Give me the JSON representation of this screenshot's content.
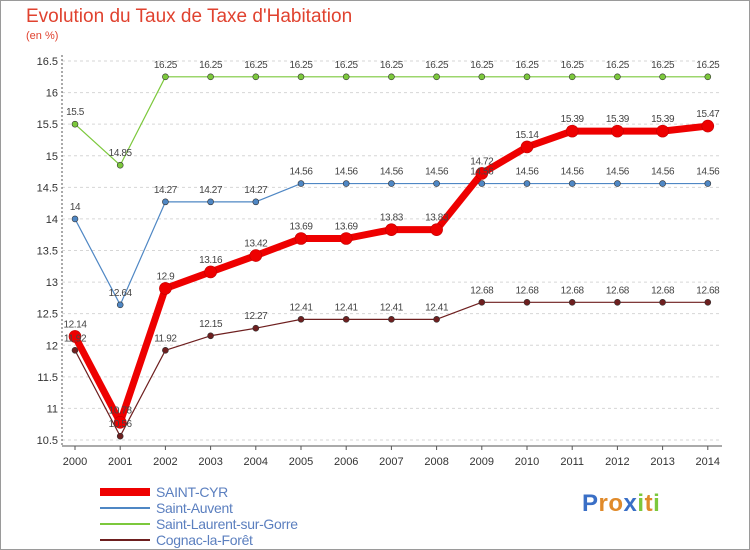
{
  "chart_data": {
    "type": "line",
    "title": "Evolution du Taux de Taxe d'Habitation",
    "subtitle": "(en %)",
    "categories": [
      "2000",
      "2001",
      "2002",
      "2003",
      "2004",
      "2005",
      "2006",
      "2007",
      "2008",
      "2009",
      "2010",
      "2011",
      "2012",
      "2013",
      "2014"
    ],
    "ylim": [
      10.5,
      16.5
    ],
    "yticks": [
      "10.5",
      "11",
      "11.5",
      "12",
      "12.5",
      "13",
      "13.5",
      "14",
      "14.5",
      "15",
      "15.5",
      "16",
      "16.5"
    ],
    "grid": "dashed horizontal",
    "legend_position": "bottom-left",
    "series": [
      {
        "name": "SAINT-CYR",
        "color": "#ee0000",
        "bold": true,
        "values": [
          12.14,
          10.78,
          12.9,
          13.16,
          13.42,
          13.69,
          13.69,
          13.83,
          13.83,
          14.72,
          15.14,
          15.39,
          15.39,
          15.39,
          15.47
        ],
        "labels": [
          "12.14",
          "10.78",
          "12.9",
          "13.16",
          "13.42",
          "13.69",
          "13.69",
          "13.83",
          "13.83",
          "14.72",
          "15.14",
          "15.39",
          "15.39",
          "15.39",
          "15.47"
        ]
      },
      {
        "name": "Saint-Auvent",
        "color": "#4f87c4",
        "bold": false,
        "values": [
          14,
          12.64,
          14.27,
          14.27,
          14.27,
          14.56,
          14.56,
          14.56,
          14.56,
          14.56,
          14.56,
          14.56,
          14.56,
          14.56,
          14.56
        ],
        "labels": [
          "14",
          "12.64",
          "14.27",
          "14.27",
          "14.27",
          "14.56",
          "14.56",
          "14.56",
          "14.56",
          "14.56",
          "14.56",
          "14.56",
          "14.56",
          "14.56",
          "14.56"
        ]
      },
      {
        "name": "Saint-Laurent-sur-Gorre",
        "color": "#7cc83c",
        "bold": false,
        "values": [
          15.5,
          14.85,
          16.25,
          16.25,
          16.25,
          16.25,
          16.25,
          16.25,
          16.25,
          16.25,
          16.25,
          16.25,
          16.25,
          16.25,
          16.25
        ],
        "labels": [
          "15.5",
          "14.85",
          "16.25",
          "16.25",
          "16.25",
          "16.25",
          "16.25",
          "16.25",
          "16.25",
          "16.25",
          "16.25",
          "16.25",
          "16.25",
          "16.25",
          "16.25"
        ]
      },
      {
        "name": "Cognac-la-Forêt",
        "color": "#6e1f1f",
        "bold": false,
        "values": [
          11.92,
          10.56,
          11.92,
          12.15,
          12.27,
          12.41,
          12.41,
          12.41,
          12.41,
          12.68,
          12.68,
          12.68,
          12.68,
          12.68,
          12.68
        ],
        "labels": [
          "11.92",
          "10.56",
          "11.92",
          "12.15",
          "12.27",
          "12.41",
          "12.41",
          "12.41",
          "12.41",
          "12.68",
          "12.68",
          "12.68",
          "12.68",
          "12.68",
          "12.68"
        ]
      }
    ]
  },
  "logo": {
    "letters": [
      "P",
      "r",
      "o",
      "x",
      "i",
      "t",
      "i"
    ],
    "colors": [
      "#3a6fc6",
      "#e08a2a",
      "#e08a2a",
      "#3a6fc6",
      "#7cc83c",
      "#e08a2a",
      "#7cc83c"
    ]
  }
}
